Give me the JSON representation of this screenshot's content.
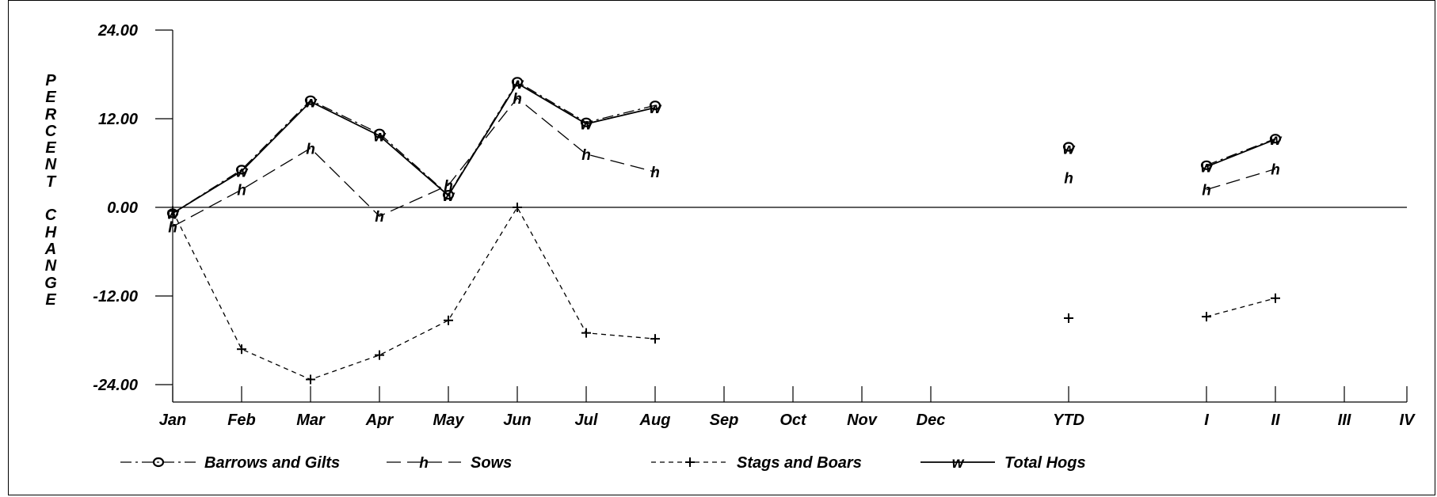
{
  "chart_data": {
    "type": "line",
    "ylabel": "PERCENT CHANGE",
    "yticks": [
      "24.00",
      "12.00",
      "0.00",
      "-12.00",
      "-24.00"
    ],
    "ylim": [
      -24,
      24
    ],
    "categories": [
      "Jan",
      "Feb",
      "Mar",
      "Apr",
      "May",
      "Jun",
      "Jul",
      "Aug",
      "Sep",
      "Oct",
      "Nov",
      "Dec",
      "YTD",
      "I",
      "II",
      "III",
      "IV"
    ],
    "series": [
      {
        "name": "Barrows and Gilts",
        "marker": "o",
        "dash": "dashdot",
        "values": [
          -0.8,
          5.1,
          14.5,
          10.0,
          1.7,
          17.0,
          11.5,
          13.8,
          null,
          null,
          null,
          null,
          8.2,
          5.7,
          9.3,
          null,
          null
        ]
      },
      {
        "name": "Sows",
        "marker": "h",
        "dash": "longdash",
        "values": [
          -2.6,
          2.4,
          8.0,
          -1.2,
          3.0,
          14.8,
          7.2,
          4.8,
          null,
          null,
          null,
          null,
          4.0,
          2.4,
          5.2,
          null,
          null
        ]
      },
      {
        "name": "Stags and Boars",
        "marker": "+",
        "dash": "shortdash",
        "values": [
          -0.5,
          -19.2,
          -23.3,
          -20.0,
          -15.3,
          0.0,
          -17.0,
          -17.8,
          null,
          null,
          null,
          null,
          -15.0,
          -14.8,
          -12.3,
          null,
          null
        ]
      },
      {
        "name": "Total Hogs",
        "marker": "w",
        "dash": "solid",
        "values": [
          -0.8,
          4.9,
          14.3,
          9.7,
          1.6,
          16.8,
          11.3,
          13.5,
          null,
          null,
          null,
          null,
          8.0,
          5.5,
          9.2,
          null,
          null
        ]
      }
    ],
    "segments": [
      [
        0,
        7
      ],
      [
        13,
        14
      ]
    ],
    "legend_position": "bottom",
    "grid": false
  }
}
